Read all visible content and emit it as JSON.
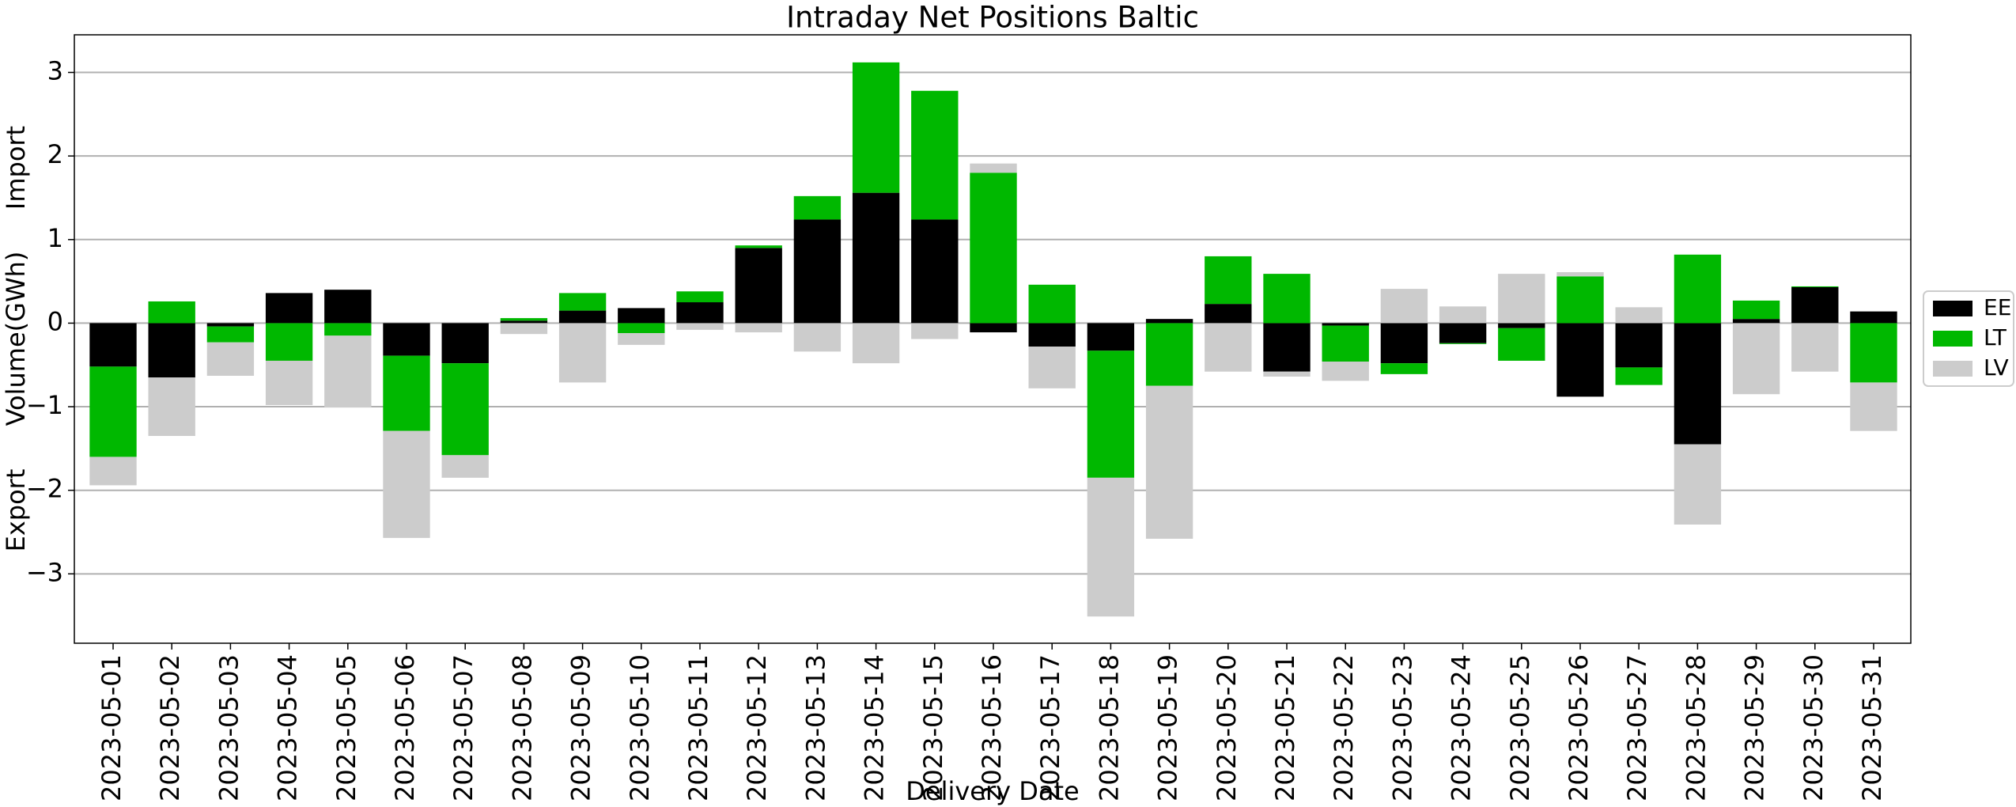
{
  "chart_data": {
    "type": "bar",
    "stacked": true,
    "title": "Intraday Net Positions Baltic",
    "xlabel": "Delivery Date",
    "ylabel": "Volume(GWh)",
    "annotations": [
      "Import",
      "Export"
    ],
    "categories": [
      "2023-05-01",
      "2023-05-02",
      "2023-05-03",
      "2023-05-04",
      "2023-05-05",
      "2023-05-06",
      "2023-05-07",
      "2023-05-08",
      "2023-05-09",
      "2023-05-10",
      "2023-05-11",
      "2023-05-12",
      "2023-05-13",
      "2023-05-14",
      "2023-05-15",
      "2023-05-16",
      "2023-05-17",
      "2023-05-18",
      "2023-05-19",
      "2023-05-20",
      "2023-05-21",
      "2023-05-22",
      "2023-05-23",
      "2023-05-24",
      "2023-05-25",
      "2023-05-26",
      "2023-05-27",
      "2023-05-28",
      "2023-05-29",
      "2023-05-30",
      "2023-05-31"
    ],
    "series": [
      {
        "name": "EE",
        "color": "#000000",
        "values": [
          -0.52,
          -0.65,
          -0.04,
          0.36,
          0.4,
          -0.39,
          -0.48,
          0.03,
          0.15,
          0.18,
          0.25,
          0.9,
          1.24,
          1.56,
          1.24,
          -0.11,
          -0.28,
          -0.33,
          0.05,
          0.23,
          -0.58,
          -0.03,
          -0.48,
          -0.24,
          -0.06,
          -0.88,
          -0.53,
          -1.45,
          0.05,
          0.43,
          0.14
        ]
      },
      {
        "name": "LT",
        "color": "#00b800",
        "values": [
          -1.08,
          0.26,
          -0.19,
          -0.45,
          -0.15,
          -0.9,
          -1.1,
          0.03,
          0.21,
          -0.12,
          0.13,
          0.03,
          0.28,
          1.56,
          1.54,
          1.8,
          0.46,
          -1.52,
          -0.75,
          0.57,
          0.59,
          -0.43,
          -0.13,
          -0.01,
          -0.39,
          0.56,
          -0.21,
          0.82,
          0.22,
          0.01,
          -0.71
        ]
      },
      {
        "name": "LV",
        "color": "#cccccc",
        "values": [
          -0.34,
          -0.7,
          -0.4,
          -0.53,
          -0.86,
          -1.28,
          -0.27,
          -0.13,
          -0.71,
          -0.14,
          -0.08,
          -0.11,
          -0.34,
          -0.48,
          -0.19,
          0.11,
          -0.5,
          -1.66,
          -1.83,
          -0.58,
          -0.06,
          -0.23,
          0.41,
          0.2,
          0.59,
          0.05,
          0.19,
          -0.96,
          -0.85,
          -0.58,
          -0.58
        ]
      }
    ],
    "ylim": [
      -3.83,
      3.45
    ],
    "yticks": [
      {
        "value": -3,
        "label": "−3"
      },
      {
        "value": -2,
        "label": "−2"
      },
      {
        "value": -1,
        "label": "−1"
      },
      0,
      1,
      2,
      3
    ],
    "grid": true,
    "legend": "right"
  }
}
